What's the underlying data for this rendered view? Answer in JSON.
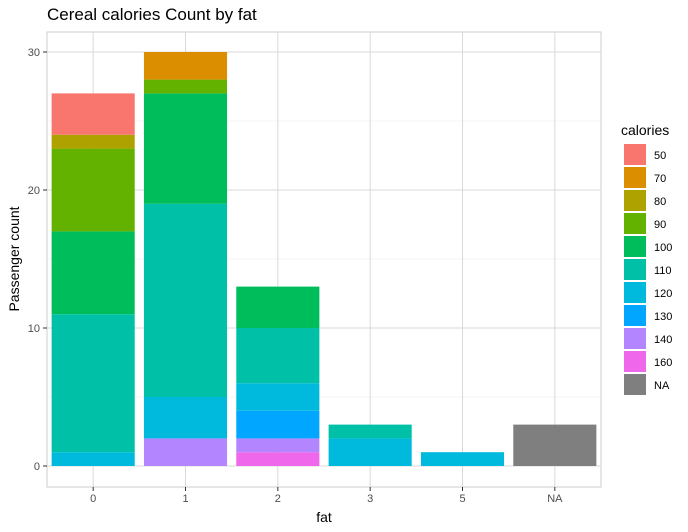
{
  "chart_data": {
    "type": "bar",
    "stacked": true,
    "title": "Cereal calories Count by fat",
    "xlabel": "fat",
    "ylabel": "Passenger count",
    "categories": [
      "0",
      "1",
      "2",
      "3",
      "5",
      "NA"
    ],
    "ylim": [
      0,
      31
    ],
    "yticks": [
      0,
      10,
      20,
      30
    ],
    "grid": true,
    "legend_title": "calories",
    "legend_position": "right",
    "series": [
      {
        "name": "50",
        "color": "#F8766D",
        "values": [
          3,
          0,
          0,
          0,
          0,
          0
        ]
      },
      {
        "name": "70",
        "color": "#DB8E00",
        "values": [
          0,
          2,
          0,
          0,
          0,
          0
        ]
      },
      {
        "name": "80",
        "color": "#AEA200",
        "values": [
          1,
          0,
          0,
          0,
          0,
          0
        ]
      },
      {
        "name": "90",
        "color": "#64B200",
        "values": [
          6,
          1,
          0,
          0,
          0,
          0
        ]
      },
      {
        "name": "100",
        "color": "#00BD5C",
        "values": [
          6,
          8,
          3,
          0,
          0,
          0
        ]
      },
      {
        "name": "110",
        "color": "#00C1A7",
        "values": [
          10,
          14,
          4,
          1,
          0,
          0
        ]
      },
      {
        "name": "120",
        "color": "#00BADE",
        "values": [
          1,
          3,
          2,
          2,
          1,
          0
        ]
      },
      {
        "name": "130",
        "color": "#00A6FF",
        "values": [
          0,
          0,
          2,
          0,
          0,
          0
        ]
      },
      {
        "name": "140",
        "color": "#B385FF",
        "values": [
          0,
          2,
          1,
          0,
          0,
          0
        ]
      },
      {
        "name": "160",
        "color": "#EF67EB",
        "values": [
          0,
          0,
          1,
          0,
          0,
          0
        ]
      },
      {
        "name": "NA",
        "color": "#7F7F7F",
        "values": [
          0,
          0,
          0,
          0,
          0,
          3
        ]
      }
    ]
  }
}
